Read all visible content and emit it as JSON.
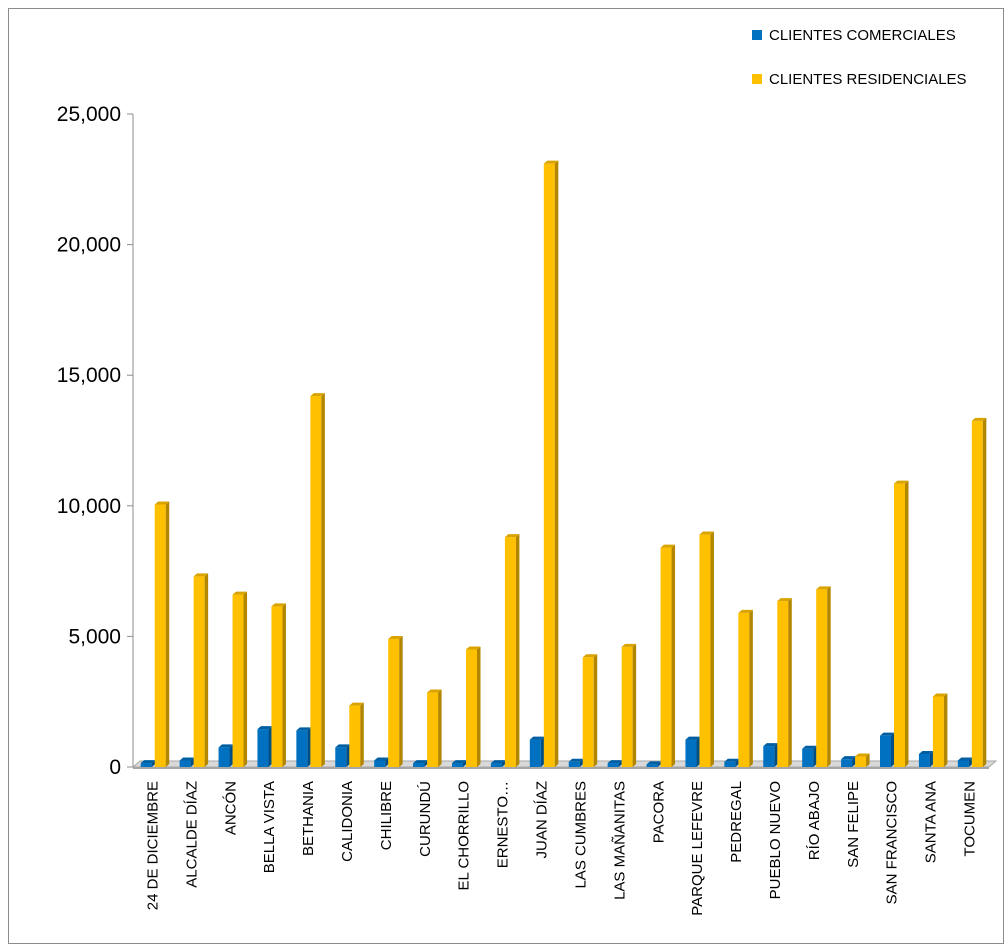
{
  "chart_data": {
    "type": "bar",
    "categories": [
      "24 DE DICIEMBRE",
      "ALCALDE DÍAZ",
      "ANCÓN",
      "BELLA VISTA",
      "BETHANIA",
      "CALIDONIA",
      "CHILIBRE",
      "CURUNDÚ",
      "EL CHORRILLO",
      "ERNESTO…",
      "JUAN DÍAZ",
      "LAS CUMBRES",
      "LAS MAÑANITAS",
      "PACORA",
      "PARQUE LEFEVRE",
      "PEDREGAL",
      "PUEBLO NUEVO",
      "RÍO ABAJO",
      "SAN FELIPE",
      "SAN FRANCISCO",
      "SANTA ANA",
      "TOCUMEN"
    ],
    "series": [
      {
        "name": "CLIENTES COMERCIALES",
        "color": "#0070C0",
        "values": [
          150,
          250,
          750,
          1450,
          1400,
          750,
          250,
          150,
          150,
          150,
          1050,
          200,
          150,
          100,
          1050,
          200,
          800,
          700,
          300,
          1200,
          500,
          250
        ]
      },
      {
        "name": "CLIENTES RESIDENCIALES",
        "color": "#FFC000",
        "values": [
          10050,
          7300,
          6600,
          6150,
          14200,
          2350,
          4900,
          2850,
          4500,
          8800,
          23100,
          4200,
          4600,
          8400,
          8900,
          5900,
          6350,
          6800,
          400,
          10850,
          2700,
          13250
        ]
      }
    ],
    "yticks": [
      "0",
      "5,000",
      "10,000",
      "15,000",
      "20,000",
      "25,000"
    ],
    "ylim": [
      0,
      25000
    ],
    "title": "",
    "xlabel": "",
    "ylabel": "",
    "legend": "top-right",
    "grid": false
  }
}
